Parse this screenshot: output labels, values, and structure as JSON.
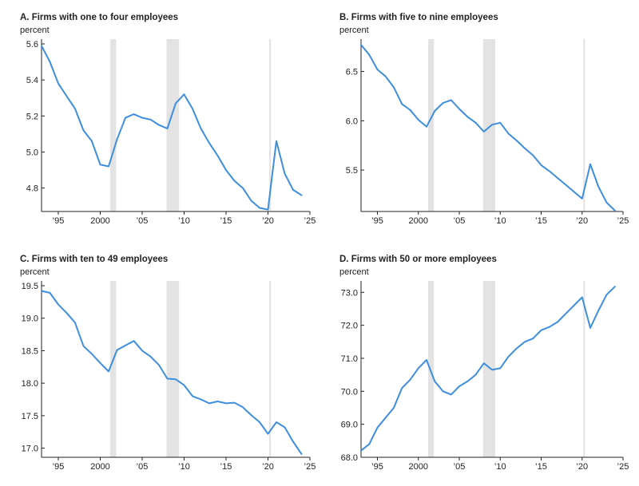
{
  "figure": {
    "colors": {
      "line": "#3d8ede",
      "recession": "#e3e3e3",
      "axis": "#222222"
    }
  },
  "chart_data": [
    {
      "type": "line",
      "title": "A. Firms with one to four employees",
      "ylabel": "percent",
      "xlim": [
        1993,
        2025
      ],
      "ylim": [
        4.67,
        5.6
      ],
      "x_ticks": [
        1995,
        2000,
        2005,
        2010,
        2015,
        2020,
        2025
      ],
      "x_tick_labels": [
        "’95",
        "2000",
        "’05",
        "’10",
        "’15",
        "’20",
        "’25"
      ],
      "y_ticks": [
        4.8,
        5.0,
        5.2,
        5.4,
        5.6
      ],
      "y_tick_labels": [
        "4.8",
        "5.0",
        "5.2",
        "5.4",
        "5.6"
      ],
      "recessions": [
        [
          2001.2,
          2001.9
        ],
        [
          2007.9,
          2009.4
        ],
        [
          2020.15,
          2020.35
        ]
      ],
      "series": [
        {
          "x": [
            1993,
            1994,
            1995,
            1996,
            1997,
            1998,
            1999,
            2000,
            2001,
            2002,
            2003,
            2004,
            2005,
            2006,
            2007,
            2008,
            2009,
            2010,
            2011,
            2012,
            2013,
            2014,
            2015,
            2016,
            2017,
            2018,
            2019,
            2020,
            2021,
            2022,
            2023,
            2024
          ],
          "values": [
            5.59,
            5.5,
            5.38,
            5.31,
            5.24,
            5.12,
            5.06,
            4.93,
            4.92,
            5.07,
            5.19,
            5.21,
            5.19,
            5.18,
            5.15,
            5.13,
            5.27,
            5.32,
            5.24,
            5.13,
            5.05,
            4.98,
            4.9,
            4.84,
            4.8,
            4.73,
            4.69,
            4.68,
            5.06,
            4.88,
            4.79,
            4.76
          ]
        }
      ]
    },
    {
      "type": "line",
      "title": "B. Firms with five to nine employees",
      "ylabel": "percent",
      "xlim": [
        1993,
        2025
      ],
      "ylim": [
        5.08,
        6.78
      ],
      "x_ticks": [
        1995,
        2000,
        2005,
        2010,
        2015,
        2020,
        2025
      ],
      "x_tick_labels": [
        "’95",
        "2000",
        "’05",
        "’10",
        "’15",
        "’20",
        "’25"
      ],
      "y_ticks": [
        5.5,
        6.0,
        6.5
      ],
      "y_tick_labels": [
        "5.5",
        "6.0",
        "6.5"
      ],
      "recessions": [
        [
          2001.2,
          2001.9
        ],
        [
          2007.9,
          2009.4
        ],
        [
          2020.15,
          2020.35
        ]
      ],
      "series": [
        {
          "x": [
            1993,
            1994,
            1995,
            1996,
            1997,
            1998,
            1999,
            2000,
            2001,
            2002,
            2003,
            2004,
            2005,
            2006,
            2007,
            2008,
            2009,
            2010,
            2011,
            2012,
            2013,
            2014,
            2015,
            2016,
            2017,
            2018,
            2019,
            2020,
            2021,
            2022,
            2023,
            2024
          ],
          "values": [
            6.77,
            6.67,
            6.52,
            6.45,
            6.34,
            6.17,
            6.11,
            6.01,
            5.94,
            6.1,
            6.18,
            6.21,
            6.12,
            6.04,
            5.98,
            5.89,
            5.96,
            5.98,
            5.87,
            5.8,
            5.72,
            5.65,
            5.55,
            5.49,
            5.42,
            5.35,
            5.28,
            5.21,
            5.56,
            5.33,
            5.17,
            5.09
          ]
        }
      ]
    },
    {
      "type": "line",
      "title": "C. Firms with ten to 49 employees",
      "ylabel": "percent",
      "xlim": [
        1993,
        2025
      ],
      "ylim": [
        16.86,
        19.5
      ],
      "x_ticks": [
        1995,
        2000,
        2005,
        2010,
        2015,
        2020,
        2025
      ],
      "x_tick_labels": [
        "’95",
        "2000",
        "’05",
        "’10",
        "’15",
        "’20",
        "’25"
      ],
      "y_ticks": [
        17.0,
        17.5,
        18.0,
        18.5,
        19.0,
        19.5
      ],
      "y_tick_labels": [
        "17.0",
        "17.5",
        "18.0",
        "18.5",
        "19.0",
        "19.5"
      ],
      "recessions": [
        [
          2001.2,
          2001.9
        ],
        [
          2007.9,
          2009.4
        ],
        [
          2020.15,
          2020.35
        ]
      ],
      "series": [
        {
          "x": [
            1993,
            1994,
            1995,
            1996,
            1997,
            1998,
            1999,
            2000,
            2001,
            2002,
            2003,
            2004,
            2005,
            2006,
            2007,
            2008,
            2009,
            2010,
            2011,
            2012,
            2013,
            2014,
            2015,
            2016,
            2017,
            2018,
            2019,
            2020,
            2021,
            2022,
            2023,
            2024
          ],
          "values": [
            19.42,
            19.39,
            19.21,
            19.08,
            18.93,
            18.57,
            18.45,
            18.31,
            18.18,
            18.51,
            18.58,
            18.65,
            18.5,
            18.41,
            18.28,
            18.07,
            18.06,
            17.97,
            17.8,
            17.75,
            17.69,
            17.72,
            17.69,
            17.7,
            17.63,
            17.51,
            17.4,
            17.22,
            17.4,
            17.32,
            17.1,
            16.91
          ]
        }
      ]
    },
    {
      "type": "line",
      "title": "D. Firms with 50 or more employees",
      "ylabel": "percent",
      "xlim": [
        1993,
        2025
      ],
      "ylim": [
        68.0,
        73.2
      ],
      "x_ticks": [
        1995,
        2000,
        2005,
        2010,
        2015,
        2020,
        2025
      ],
      "x_tick_labels": [
        "’95",
        "2000",
        "’05",
        "’10",
        "’15",
        "’20",
        "’25"
      ],
      "y_ticks": [
        68.0,
        69.0,
        70.0,
        71.0,
        72.0,
        73.0
      ],
      "y_tick_labels": [
        "68.0",
        "69.0",
        "70.0",
        "71.0",
        "72.0",
        "73.0"
      ],
      "recessions": [
        [
          2001.2,
          2001.9
        ],
        [
          2007.9,
          2009.4
        ],
        [
          2020.15,
          2020.35
        ]
      ],
      "series": [
        {
          "x": [
            1993,
            1994,
            1995,
            1996,
            1997,
            1998,
            1999,
            2000,
            2001,
            2002,
            2003,
            2004,
            2005,
            2006,
            2007,
            2008,
            2009,
            2010,
            2011,
            2012,
            2013,
            2014,
            2015,
            2016,
            2017,
            2018,
            2019,
            2020,
            2021,
            2022,
            2023,
            2024
          ],
          "values": [
            68.2,
            68.4,
            68.9,
            69.2,
            69.5,
            70.1,
            70.35,
            70.7,
            70.95,
            70.3,
            70.0,
            69.9,
            70.15,
            70.3,
            70.5,
            70.85,
            70.65,
            70.7,
            71.05,
            71.3,
            71.5,
            71.6,
            71.85,
            71.95,
            72.1,
            72.35,
            72.6,
            72.85,
            71.92,
            72.45,
            72.93,
            73.17
          ]
        }
      ]
    }
  ]
}
